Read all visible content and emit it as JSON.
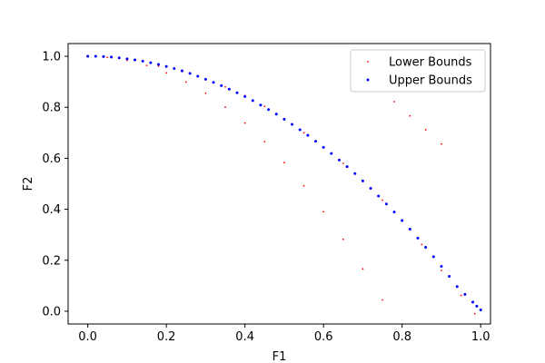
{
  "chart_data": {
    "type": "scatter",
    "title": "",
    "xlabel": "F1",
    "ylabel": "F2",
    "xlim": [
      -0.05,
      1.025
    ],
    "ylim": [
      -0.05,
      1.05
    ],
    "xticks": [
      0.0,
      0.2,
      0.4,
      0.6,
      0.8,
      1.0
    ],
    "xtick_labels": [
      "0.0",
      "0.2",
      "0.4",
      "0.6",
      "0.8",
      "1.0"
    ],
    "yticks": [
      0.0,
      0.2,
      0.4,
      0.6,
      0.8,
      1.0
    ],
    "ytick_labels": [
      "0.0",
      "0.2",
      "0.4",
      "0.6",
      "0.8",
      "1.0"
    ],
    "grid": false,
    "legend_position": "top-right",
    "series": [
      {
        "name": "Lower Bounds",
        "color": "#ff0000",
        "points": [
          [
            0.0,
            1.0
          ],
          [
            0.05,
            0.996
          ],
          [
            0.1,
            0.984
          ],
          [
            0.15,
            0.964
          ],
          [
            0.2,
            0.935
          ],
          [
            0.25,
            0.899
          ],
          [
            0.3,
            0.855
          ],
          [
            0.35,
            0.801
          ],
          [
            0.4,
            0.738
          ],
          [
            0.45,
            0.665
          ],
          [
            0.5,
            0.583
          ],
          [
            0.55,
            0.492
          ],
          [
            0.6,
            0.39
          ],
          [
            0.65,
            0.282
          ],
          [
            0.7,
            0.166
          ],
          [
            0.75,
            0.044
          ],
          [
            0.78,
            0.822
          ],
          [
            0.82,
            0.766
          ],
          [
            0.86,
            0.712
          ],
          [
            0.9,
            0.656
          ],
          [
            0.06,
            0.995
          ],
          [
            0.12,
            0.985
          ],
          [
            0.18,
            0.962
          ],
          [
            0.24,
            0.94
          ],
          [
            0.3,
            0.912
          ],
          [
            0.35,
            0.88
          ],
          [
            0.4,
            0.846
          ],
          [
            0.45,
            0.804
          ],
          [
            0.5,
            0.752
          ],
          [
            0.55,
            0.7
          ],
          [
            0.6,
            0.642
          ],
          [
            0.65,
            0.58
          ],
          [
            0.7,
            0.51
          ],
          [
            0.75,
            0.436
          ],
          [
            0.8,
            0.354
          ],
          [
            0.85,
            0.262
          ],
          [
            0.9,
            0.16
          ],
          [
            0.95,
            0.062
          ],
          [
            0.985,
            -0.01
          ]
        ]
      },
      {
        "name": "Upper Bounds",
        "color": "#0000ff",
        "points": [
          [
            0.0,
            1.0
          ],
          [
            0.02,
            1.0
          ],
          [
            0.04,
            0.999
          ],
          [
            0.06,
            0.997
          ],
          [
            0.08,
            0.994
          ],
          [
            0.1,
            0.99
          ],
          [
            0.12,
            0.986
          ],
          [
            0.14,
            0.981
          ],
          [
            0.16,
            0.975
          ],
          [
            0.18,
            0.968
          ],
          [
            0.2,
            0.96
          ],
          [
            0.22,
            0.952
          ],
          [
            0.24,
            0.943
          ],
          [
            0.26,
            0.933
          ],
          [
            0.28,
            0.922
          ],
          [
            0.3,
            0.91
          ],
          [
            0.32,
            0.898
          ],
          [
            0.34,
            0.885
          ],
          [
            0.36,
            0.871
          ],
          [
            0.38,
            0.857
          ],
          [
            0.4,
            0.842
          ],
          [
            0.42,
            0.826
          ],
          [
            0.44,
            0.809
          ],
          [
            0.46,
            0.791
          ],
          [
            0.48,
            0.773
          ],
          [
            0.5,
            0.753
          ],
          [
            0.52,
            0.733
          ],
          [
            0.54,
            0.712
          ],
          [
            0.56,
            0.69
          ],
          [
            0.58,
            0.667
          ],
          [
            0.6,
            0.643
          ],
          [
            0.62,
            0.619
          ],
          [
            0.64,
            0.593
          ],
          [
            0.66,
            0.567
          ],
          [
            0.68,
            0.54
          ],
          [
            0.7,
            0.511
          ],
          [
            0.72,
            0.482
          ],
          [
            0.74,
            0.452
          ],
          [
            0.76,
            0.421
          ],
          [
            0.78,
            0.389
          ],
          [
            0.8,
            0.356
          ],
          [
            0.82,
            0.322
          ],
          [
            0.84,
            0.287
          ],
          [
            0.86,
            0.251
          ],
          [
            0.88,
            0.214
          ],
          [
            0.9,
            0.176
          ],
          [
            0.92,
            0.137
          ],
          [
            0.94,
            0.097
          ],
          [
            0.96,
            0.066
          ],
          [
            0.98,
            0.036
          ],
          [
            0.99,
            0.02
          ],
          [
            1.0,
            0.005
          ]
        ]
      }
    ]
  }
}
